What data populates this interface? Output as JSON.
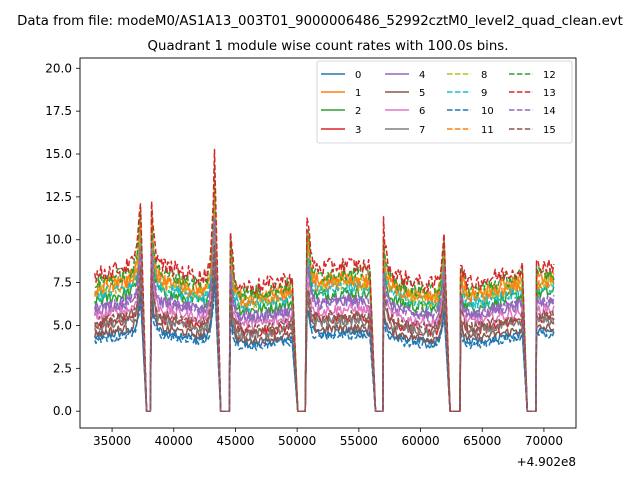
{
  "chart_data": {
    "type": "line",
    "suptitle": "Data from file: modeM0/AS1A13_003T01_9000006486_52992cztM0_level2_quad_clean.evt",
    "title": "Quadrant 1 module wise count rates with 100.0s bins.",
    "xlabel": "",
    "ylabel": "",
    "x_offset_label": "+4.902e8",
    "xlim": [
      32400,
      72600
    ],
    "ylim": [
      -0.98,
      20.6
    ],
    "xticks": [
      35000,
      40000,
      45000,
      50000,
      55000,
      60000,
      65000,
      70000
    ],
    "xtick_labels": [
      "35000",
      "40000",
      "45000",
      "50000",
      "55000",
      "60000",
      "65000",
      "70000"
    ],
    "yticks": [
      0,
      2.5,
      5,
      7.5,
      10,
      12.5,
      15,
      17.5,
      20
    ],
    "ytick_labels": [
      "0.0",
      "2.5",
      "5.0",
      "7.5",
      "10.0",
      "12.5",
      "15.0",
      "17.5",
      "20.0"
    ],
    "legend_location": "upper right",
    "legend_ncol": 4,
    "data_segments": [
      [
        33600,
        37350
      ],
      [
        38200,
        43350
      ],
      [
        44600,
        49650
      ],
      [
        50800,
        55900
      ],
      [
        57000,
        61950
      ],
      [
        63250,
        68250
      ],
      [
        69400,
        70800
      ]
    ],
    "gaps": [
      [
        37800,
        38150
      ],
      [
        43800,
        44550
      ],
      [
        50050,
        50700
      ],
      [
        56350,
        56950
      ],
      [
        62400,
        63200
      ],
      [
        68650,
        69350
      ]
    ],
    "peaks": [
      {
        "x": 37300,
        "factor": 1.5
      },
      {
        "x": 38200,
        "factor": 1.5
      },
      {
        "x": 43400,
        "factor": 2.45
      },
      {
        "x": 44600,
        "factor": 1.4
      },
      {
        "x": 50850,
        "factor": 1.45
      },
      {
        "x": 56950,
        "factor": 1.45
      },
      {
        "x": 62000,
        "factor": 1.7
      },
      {
        "x": 63300,
        "factor": 1.2
      }
    ],
    "series": [
      {
        "name": "0",
        "base": 4.3,
        "color": "#1f77b4",
        "dashed": false
      },
      {
        "name": "1",
        "base": 7.2,
        "color": "#ff7f0e",
        "dashed": false
      },
      {
        "name": "2",
        "base": 6.4,
        "color": "#2ca02c",
        "dashed": false
      },
      {
        "name": "3",
        "base": 5.0,
        "color": "#d62728",
        "dashed": false
      },
      {
        "name": "4",
        "base": 5.9,
        "color": "#9467bd",
        "dashed": false
      },
      {
        "name": "5",
        "base": 4.5,
        "color": "#8c564b",
        "dashed": false
      },
      {
        "name": "6",
        "base": 5.5,
        "color": "#e377c2",
        "dashed": false
      },
      {
        "name": "7",
        "base": 4.9,
        "color": "#7f7f7f",
        "dashed": false
      },
      {
        "name": "8",
        "base": 6.9,
        "color": "#bcbd22",
        "dashed": true
      },
      {
        "name": "9",
        "base": 6.7,
        "color": "#17becf",
        "dashed": true
      },
      {
        "name": "10",
        "base": 4.1,
        "color": "#1f77b4",
        "dashed": true
      },
      {
        "name": "11",
        "base": 7.0,
        "color": "#ff7f0e",
        "dashed": true
      },
      {
        "name": "12",
        "base": 7.5,
        "color": "#2ca02c",
        "dashed": true
      },
      {
        "name": "13",
        "base": 7.9,
        "color": "#d62728",
        "dashed": true
      },
      {
        "name": "14",
        "base": 6.0,
        "color": "#9467bd",
        "dashed": true
      },
      {
        "name": "15",
        "base": 5.2,
        "color": "#8c564b",
        "dashed": true
      }
    ]
  }
}
